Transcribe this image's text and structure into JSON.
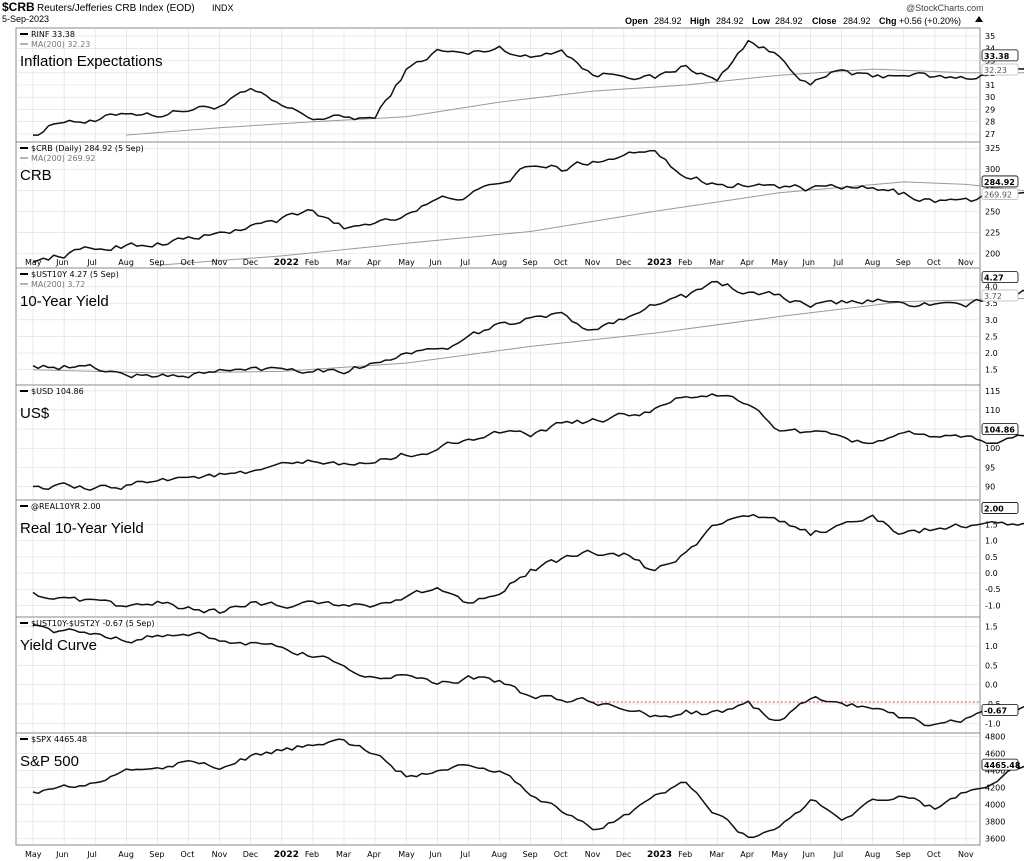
{
  "header": {
    "symbol": "$CRB",
    "name": "Reuters/Jefferies CRB Index (EOD)",
    "exchange": "INDX",
    "date": "5-Sep-2023",
    "open_label": "Open",
    "open": "284.92",
    "high_label": "High",
    "high": "284.92",
    "low_label": "Low",
    "low": "284.92",
    "close_label": "Close",
    "close": "284.92",
    "chg_label": "Chg",
    "chg": "+0.56 (+0.20%)",
    "brand": "@StockCharts.com"
  },
  "x_axis": {
    "labels": [
      "May",
      "Jun",
      "Jul",
      "Aug",
      "Sep",
      "Oct",
      "Nov",
      "Dec",
      "2022",
      "Feb",
      "Mar",
      "Apr",
      "May",
      "Jun",
      "Jul",
      "Aug",
      "Sep",
      "Oct",
      "Nov",
      "Dec",
      "2023",
      "Feb",
      "Mar",
      "Apr",
      "May",
      "Jun",
      "Jul",
      "Aug",
      "Sep",
      "Oct",
      "Nov"
    ],
    "bold_labels": [
      "2022",
      "2023"
    ]
  },
  "colors": {
    "price": "#111111",
    "ma": "#9a9a9a",
    "grid": "#dcdcdc",
    "border": "#888888",
    "redline": "#d40000"
  },
  "chart_data": [
    {
      "type": "line",
      "id": "rinf",
      "legend": "RINF 33.38",
      "ma_legend": "MA(200) 32.23",
      "title": "Inflation Expectations",
      "ylim": [
        26.5,
        35.5
      ],
      "yticks": [
        "35",
        "34",
        "33",
        "32",
        "31",
        "30",
        "29",
        "28",
        "27"
      ],
      "last": "33.38",
      "ma_last": "32.23",
      "anchors": [
        [
          0,
          26.9
        ],
        [
          1,
          28.2
        ],
        [
          2,
          28.0
        ],
        [
          3,
          28.8
        ],
        [
          4,
          28.6
        ],
        [
          5,
          29.0
        ],
        [
          6,
          29.3
        ],
        [
          7,
          30.5
        ],
        [
          8,
          29.2
        ],
        [
          9,
          28.3
        ],
        [
          10,
          28.3
        ],
        [
          11,
          28.3
        ],
        [
          12,
          32.2
        ],
        [
          13,
          33.8
        ],
        [
          14,
          33.5
        ],
        [
          15,
          34.1
        ],
        [
          16,
          33.2
        ],
        [
          17,
          34.0
        ],
        [
          18,
          31.8
        ],
        [
          19,
          32.0
        ],
        [
          20,
          31.5
        ],
        [
          21,
          32.6
        ],
        [
          22,
          31.3
        ],
        [
          23,
          34.7
        ],
        [
          24,
          33.3
        ],
        [
          25,
          31.0
        ],
        [
          26,
          32.2
        ],
        [
          27,
          31.5
        ],
        [
          28,
          32.0
        ],
        [
          29,
          31.6
        ],
        [
          30,
          31.5
        ],
        [
          31,
          32.2
        ],
        [
          32,
          32.4
        ],
        [
          33,
          33.3
        ],
        [
          34,
          33.7
        ],
        [
          35,
          33.38
        ]
      ],
      "ma_anchors": [
        [
          3,
          26.9
        ],
        [
          6,
          27.5
        ],
        [
          9,
          28.0
        ],
        [
          12,
          28.4
        ],
        [
          15,
          29.6
        ],
        [
          18,
          30.5
        ],
        [
          21,
          31.0
        ],
        [
          24,
          31.8
        ],
        [
          27,
          32.3
        ],
        [
          30,
          32.0
        ],
        [
          33,
          32.0
        ],
        [
          35,
          32.2
        ]
      ]
    },
    {
      "type": "line",
      "id": "crb",
      "legend": "$CRB (Daily) 284.92 (5 Sep)",
      "ma_legend": "MA(200) 269.92",
      "title": "CRB",
      "ylim": [
        185,
        330
      ],
      "yticks": [
        "325",
        "300",
        "275",
        "250",
        "225",
        "200"
      ],
      "last": "284.92",
      "ma_last": "269.92",
      "anchors": [
        [
          0,
          190
        ],
        [
          1,
          199
        ],
        [
          2,
          205
        ],
        [
          3,
          210
        ],
        [
          4,
          212
        ],
        [
          5,
          218
        ],
        [
          6,
          222
        ],
        [
          7,
          232
        ],
        [
          8,
          240
        ],
        [
          9,
          250
        ],
        [
          10,
          230
        ],
        [
          11,
          238
        ],
        [
          12,
          248
        ],
        [
          13,
          262
        ],
        [
          14,
          270
        ],
        [
          15,
          280
        ],
        [
          16,
          305
        ],
        [
          17,
          300
        ],
        [
          18,
          310
        ],
        [
          19,
          318
        ],
        [
          20,
          326
        ],
        [
          21,
          290
        ],
        [
          22,
          283
        ],
        [
          23,
          282
        ],
        [
          24,
          280
        ],
        [
          25,
          275
        ],
        [
          26,
          278
        ],
        [
          27,
          275
        ],
        [
          28,
          270
        ],
        [
          29,
          263
        ],
        [
          30,
          262
        ],
        [
          31,
          268
        ],
        [
          32,
          270
        ],
        [
          33,
          276
        ],
        [
          34,
          283
        ],
        [
          35,
          284.92
        ]
      ],
      "ma_anchors": [
        [
          4,
          186
        ],
        [
          8,
          197
        ],
        [
          12,
          212
        ],
        [
          16,
          226
        ],
        [
          20,
          250
        ],
        [
          24,
          272
        ],
        [
          28,
          285
        ],
        [
          30,
          282
        ],
        [
          32,
          274
        ],
        [
          35,
          270
        ]
      ]
    },
    {
      "type": "line",
      "id": "ust10y",
      "legend": "$UST10Y 4.27 (5 Sep)",
      "ma_legend": "MA(200) 3.72",
      "title": "10-Year Yield",
      "ylim": [
        1.1,
        4.5
      ],
      "yticks": [
        "4.0",
        "3.5",
        "3.0",
        "2.5",
        "2.0",
        "1.5"
      ],
      "last": "4.27",
      "ma_last": "3.72",
      "anchors": [
        [
          0,
          1.62
        ],
        [
          1,
          1.6
        ],
        [
          2,
          1.55
        ],
        [
          3,
          1.35
        ],
        [
          4,
          1.3
        ],
        [
          5,
          1.35
        ],
        [
          6,
          1.45
        ],
        [
          7,
          1.5
        ],
        [
          8,
          1.55
        ],
        [
          9,
          1.52
        ],
        [
          10,
          1.5
        ],
        [
          11,
          1.7
        ],
        [
          12,
          2.05
        ],
        [
          13,
          2.05
        ],
        [
          14,
          2.4
        ],
        [
          15,
          2.9
        ],
        [
          16,
          3.0
        ],
        [
          17,
          3.15
        ],
        [
          18,
          2.7
        ],
        [
          19,
          3.1
        ],
        [
          20,
          3.5
        ],
        [
          21,
          3.7
        ],
        [
          22,
          4.15
        ],
        [
          23,
          3.8
        ],
        [
          24,
          3.7
        ],
        [
          25,
          3.4
        ],
        [
          26,
          3.5
        ],
        [
          27,
          3.6
        ],
        [
          28,
          3.45
        ],
        [
          29,
          3.5
        ],
        [
          30,
          3.4
        ],
        [
          31,
          3.7
        ],
        [
          32,
          3.85
        ],
        [
          33,
          4.0
        ],
        [
          34,
          4.3
        ],
        [
          35,
          4.27
        ]
      ],
      "ma_anchors": [
        [
          0,
          1.5
        ],
        [
          4,
          1.4
        ],
        [
          8,
          1.45
        ],
        [
          12,
          1.7
        ],
        [
          16,
          2.2
        ],
        [
          20,
          2.6
        ],
        [
          24,
          3.1
        ],
        [
          28,
          3.55
        ],
        [
          31,
          3.62
        ],
        [
          35,
          3.72
        ]
      ]
    },
    {
      "type": "line",
      "id": "usd",
      "legend": "$USD 104.86",
      "title": "US$",
      "ylim": [
        87,
        116
      ],
      "yticks": [
        "115",
        "110",
        "105",
        "100",
        "95",
        "90"
      ],
      "last": "104.86",
      "anchors": [
        [
          0,
          90
        ],
        [
          1,
          89.8
        ],
        [
          2,
          89
        ],
        [
          3,
          90.2
        ],
        [
          4,
          92.2
        ],
        [
          5,
          92.5
        ],
        [
          6,
          93
        ],
        [
          7,
          93.2
        ],
        [
          8,
          95.2
        ],
        [
          9,
          96.3
        ],
        [
          10,
          95.5
        ],
        [
          11,
          96.3
        ],
        [
          12,
          98.5
        ],
        [
          13,
          99.5
        ],
        [
          14,
          103
        ],
        [
          15,
          104
        ],
        [
          16,
          102.8
        ],
        [
          17,
          106.5
        ],
        [
          18,
          107
        ],
        [
          19,
          108.5
        ],
        [
          20,
          110
        ],
        [
          21,
          113.5
        ],
        [
          22,
          114
        ],
        [
          23,
          111
        ],
        [
          24,
          105
        ],
        [
          25,
          104
        ],
        [
          26,
          102
        ],
        [
          27,
          101.5
        ],
        [
          28,
          104.5
        ],
        [
          29,
          102
        ],
        [
          30,
          102.5
        ],
        [
          31,
          101.5
        ],
        [
          32,
          103.5
        ],
        [
          33,
          100
        ],
        [
          34,
          103
        ],
        [
          35,
          104.86
        ]
      ]
    },
    {
      "type": "line",
      "id": "real10yr",
      "legend": "@REAL10YR 2.00",
      "title": "Real 10-Year Yield",
      "ylim": [
        -1.3,
        2.2
      ],
      "yticks": [
        "1.5",
        "1.0",
        "0.5",
        "0.0",
        "-0.5",
        "-1.0"
      ],
      "last": "2.00",
      "anchors": [
        [
          0,
          -0.6
        ],
        [
          1,
          -0.85
        ],
        [
          2,
          -0.95
        ],
        [
          3,
          -1.05
        ],
        [
          4,
          -0.95
        ],
        [
          5,
          -1.1
        ],
        [
          6,
          -1.2
        ],
        [
          7,
          -0.95
        ],
        [
          8,
          -1.0
        ],
        [
          9,
          -0.85
        ],
        [
          10,
          -1.0
        ],
        [
          11,
          -0.95
        ],
        [
          12,
          -0.75
        ],
        [
          13,
          -0.5
        ],
        [
          14,
          -0.9
        ],
        [
          15,
          -0.5
        ],
        [
          16,
          0.1
        ],
        [
          17,
          0.4
        ],
        [
          18,
          0.6
        ],
        [
          19,
          0.55
        ],
        [
          20,
          0.0
        ],
        [
          21,
          0.6
        ],
        [
          22,
          1.5
        ],
        [
          23,
          1.75
        ],
        [
          24,
          1.6
        ],
        [
          25,
          1.2
        ],
        [
          26,
          1.5
        ],
        [
          27,
          1.7
        ],
        [
          28,
          1.2
        ],
        [
          29,
          1.4
        ],
        [
          30,
          1.45
        ],
        [
          31,
          1.5
        ],
        [
          32,
          1.55
        ],
        [
          33,
          1.7
        ],
        [
          34,
          1.8
        ],
        [
          35,
          2.0
        ]
      ]
    },
    {
      "type": "line",
      "id": "yieldcurve",
      "legend": "$UST10Y-$UST2Y -0.67 (5 Sep)",
      "title": "Yield Curve",
      "ylim": [
        -1.2,
        1.7
      ],
      "yticks": [
        "1.5",
        "1.0",
        "0.5",
        "0.0",
        "-0.5",
        "-1.0"
      ],
      "last": "-0.67",
      "reference_level": -0.45,
      "anchors": [
        [
          0,
          1.55
        ],
        [
          1,
          1.35
        ],
        [
          2,
          1.3
        ],
        [
          3,
          1.2
        ],
        [
          4,
          1.25
        ],
        [
          5,
          1.3
        ],
        [
          6,
          1.2
        ],
        [
          7,
          1.05
        ],
        [
          8,
          0.9
        ],
        [
          9,
          0.75
        ],
        [
          10,
          0.45
        ],
        [
          11,
          0.2
        ],
        [
          12,
          0.25
        ],
        [
          13,
          -0.05
        ],
        [
          14,
          0.2
        ],
        [
          15,
          0.05
        ],
        [
          16,
          -0.3
        ],
        [
          17,
          -0.4
        ],
        [
          18,
          -0.45
        ],
        [
          19,
          -0.65
        ],
        [
          20,
          -0.8
        ],
        [
          21,
          -0.7
        ],
        [
          22,
          -0.75
        ],
        [
          23,
          -0.55
        ],
        [
          24,
          -0.95
        ],
        [
          25,
          -0.35
        ],
        [
          26,
          -0.45
        ],
        [
          27,
          -0.55
        ],
        [
          28,
          -0.85
        ],
        [
          29,
          -1.05
        ],
        [
          30,
          -0.85
        ],
        [
          31,
          -0.75
        ],
        [
          32,
          -0.65
        ],
        [
          33,
          -0.75
        ],
        [
          34,
          -0.65
        ],
        [
          35,
          -0.67
        ]
      ]
    },
    {
      "type": "line",
      "id": "spx",
      "legend": "$SPX 4465.48",
      "title": "S&P 500",
      "ylim": [
        3550,
        4820
      ],
      "yticks": [
        "4800",
        "4600",
        "4400",
        "4200",
        "4000",
        "3800",
        "3600"
      ],
      "last": "4465.48",
      "anchors": [
        [
          0,
          4150
        ],
        [
          1,
          4200
        ],
        [
          2,
          4250
        ],
        [
          3,
          4400
        ],
        [
          4,
          4450
        ],
        [
          5,
          4500
        ],
        [
          6,
          4450
        ],
        [
          7,
          4550
        ],
        [
          8,
          4650
        ],
        [
          9,
          4700
        ],
        [
          10,
          4750
        ],
        [
          11,
          4600
        ],
        [
          12,
          4350
        ],
        [
          13,
          4400
        ],
        [
          14,
          4500
        ],
        [
          15,
          4400
        ],
        [
          16,
          4150
        ],
        [
          17,
          3950
        ],
        [
          18,
          3700
        ],
        [
          19,
          3850
        ],
        [
          20,
          4100
        ],
        [
          21,
          4250
        ],
        [
          22,
          3900
        ],
        [
          23,
          3600
        ],
        [
          24,
          3750
        ],
        [
          25,
          4050
        ],
        [
          26,
          3850
        ],
        [
          27,
          4050
        ],
        [
          28,
          4100
        ],
        [
          29,
          3950
        ],
        [
          30,
          4150
        ],
        [
          31,
          4300
        ],
        [
          32,
          4500
        ],
        [
          33,
          4550
        ],
        [
          34,
          4400
        ],
        [
          35,
          4465.48
        ]
      ]
    }
  ]
}
